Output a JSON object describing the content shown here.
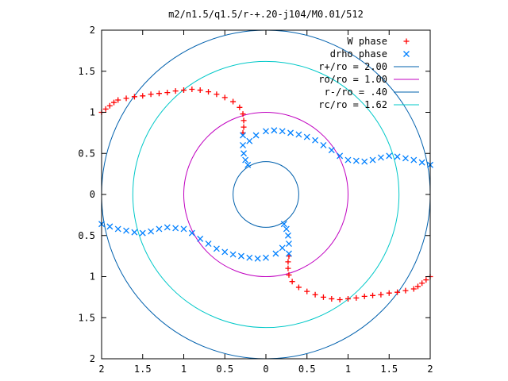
{
  "chart_data": {
    "type": "scatter",
    "title": "m2/n1.5/q1.5/r-+.20-j104/M0.01/512",
    "xlabel": "",
    "ylabel": "",
    "xlim": [
      -2,
      2
    ],
    "ylim": [
      -2,
      2
    ],
    "x_tick_values": [
      -2,
      -1.5,
      -1,
      -0.5,
      0,
      0.5,
      1,
      1.5,
      2
    ],
    "x_tick_labels": [
      "2",
      "1.5",
      "1",
      "0.5",
      "0",
      "0.5",
      "1",
      "1.5",
      "2"
    ],
    "y_tick_values": [
      2,
      1.5,
      1,
      0.5,
      0,
      -0.5,
      -1,
      -1.5,
      -2
    ],
    "y_tick_labels": [
      "2",
      "1.5",
      "1",
      "0.5",
      "0",
      "0.5",
      "1",
      "1.5",
      "2"
    ],
    "grid": false,
    "legend_position": "top-right",
    "series": [
      {
        "name": "W phase",
        "marker": "plus",
        "color": "#ff0000",
        "points": [
          [
            -2.0,
            1.0
          ],
          [
            -1.95,
            1.04
          ],
          [
            -1.9,
            1.08
          ],
          [
            -1.85,
            1.12
          ],
          [
            -1.8,
            1.15
          ],
          [
            -1.7,
            1.17
          ],
          [
            -1.6,
            1.19
          ],
          [
            -1.5,
            1.2
          ],
          [
            -1.4,
            1.22
          ],
          [
            -1.3,
            1.23
          ],
          [
            -1.2,
            1.24
          ],
          [
            -1.1,
            1.26
          ],
          [
            -1.0,
            1.27
          ],
          [
            -0.9,
            1.28
          ],
          [
            -0.8,
            1.27
          ],
          [
            -0.7,
            1.25
          ],
          [
            -0.6,
            1.22
          ],
          [
            -0.5,
            1.18
          ],
          [
            -0.4,
            1.13
          ],
          [
            -0.32,
            1.06
          ],
          [
            -0.28,
            0.98
          ],
          [
            -0.27,
            0.9
          ],
          [
            -0.27,
            0.82
          ],
          [
            -0.28,
            0.75
          ],
          [
            2.0,
            -1.0
          ],
          [
            1.95,
            -1.04
          ],
          [
            1.9,
            -1.08
          ],
          [
            1.85,
            -1.12
          ],
          [
            1.8,
            -1.15
          ],
          [
            1.7,
            -1.17
          ],
          [
            1.6,
            -1.19
          ],
          [
            1.5,
            -1.2
          ],
          [
            1.4,
            -1.22
          ],
          [
            1.3,
            -1.23
          ],
          [
            1.2,
            -1.24
          ],
          [
            1.1,
            -1.26
          ],
          [
            1.0,
            -1.27
          ],
          [
            0.9,
            -1.28
          ],
          [
            0.8,
            -1.27
          ],
          [
            0.7,
            -1.25
          ],
          [
            0.6,
            -1.22
          ],
          [
            0.5,
            -1.18
          ],
          [
            0.4,
            -1.13
          ],
          [
            0.32,
            -1.06
          ],
          [
            0.28,
            -0.98
          ],
          [
            0.27,
            -0.9
          ],
          [
            0.27,
            -0.82
          ],
          [
            0.28,
            -0.75
          ]
        ]
      },
      {
        "name": "drho phase",
        "marker": "cross",
        "color": "#0080ff",
        "points": [
          [
            -0.28,
            0.72
          ],
          [
            -0.28,
            0.6
          ],
          [
            -0.27,
            0.5
          ],
          [
            -0.25,
            0.42
          ],
          [
            -0.22,
            0.36
          ],
          [
            -0.2,
            0.65
          ],
          [
            -0.12,
            0.72
          ],
          [
            0.0,
            0.77
          ],
          [
            0.1,
            0.78
          ],
          [
            0.2,
            0.77
          ],
          [
            0.3,
            0.75
          ],
          [
            0.4,
            0.73
          ],
          [
            0.5,
            0.7
          ],
          [
            0.6,
            0.66
          ],
          [
            0.7,
            0.6
          ],
          [
            0.8,
            0.54
          ],
          [
            0.9,
            0.47
          ],
          [
            1.0,
            0.42
          ],
          [
            1.1,
            0.41
          ],
          [
            1.2,
            0.4
          ],
          [
            1.3,
            0.42
          ],
          [
            1.4,
            0.45
          ],
          [
            1.5,
            0.47
          ],
          [
            1.6,
            0.46
          ],
          [
            1.7,
            0.44
          ],
          [
            1.8,
            0.42
          ],
          [
            1.9,
            0.39
          ],
          [
            2.0,
            0.36
          ],
          [
            0.28,
            -0.72
          ],
          [
            0.28,
            -0.6
          ],
          [
            0.27,
            -0.5
          ],
          [
            0.25,
            -0.42
          ],
          [
            0.22,
            -0.36
          ],
          [
            0.2,
            -0.65
          ],
          [
            0.12,
            -0.72
          ],
          [
            0.0,
            -0.77
          ],
          [
            -0.1,
            -0.78
          ],
          [
            -0.2,
            -0.77
          ],
          [
            -0.3,
            -0.75
          ],
          [
            -0.4,
            -0.73
          ],
          [
            -0.5,
            -0.7
          ],
          [
            -0.6,
            -0.66
          ],
          [
            -0.7,
            -0.6
          ],
          [
            -0.8,
            -0.54
          ],
          [
            -0.9,
            -0.47
          ],
          [
            -1.0,
            -0.42
          ],
          [
            -1.1,
            -0.41
          ],
          [
            -1.2,
            -0.4
          ],
          [
            -1.3,
            -0.42
          ],
          [
            -1.4,
            -0.45
          ],
          [
            -1.5,
            -0.47
          ],
          [
            -1.6,
            -0.46
          ],
          [
            -1.7,
            -0.44
          ],
          [
            -1.8,
            -0.42
          ],
          [
            -1.9,
            -0.39
          ],
          [
            -2.0,
            -0.36
          ]
        ]
      },
      {
        "name": "r+/ro = 2.00",
        "type": "circle",
        "radius": 2.0,
        "color": "#0060ad"
      },
      {
        "name": "ro/ro = 1.00",
        "type": "circle",
        "radius": 1.0,
        "color": "#c000c0"
      },
      {
        "name": "r-/ro = .40",
        "type": "circle",
        "radius": 0.4,
        "color": "#0060ad"
      },
      {
        "name": "rc/ro = 1.62",
        "type": "circle",
        "radius": 1.62,
        "color": "#00c8c8"
      }
    ]
  }
}
